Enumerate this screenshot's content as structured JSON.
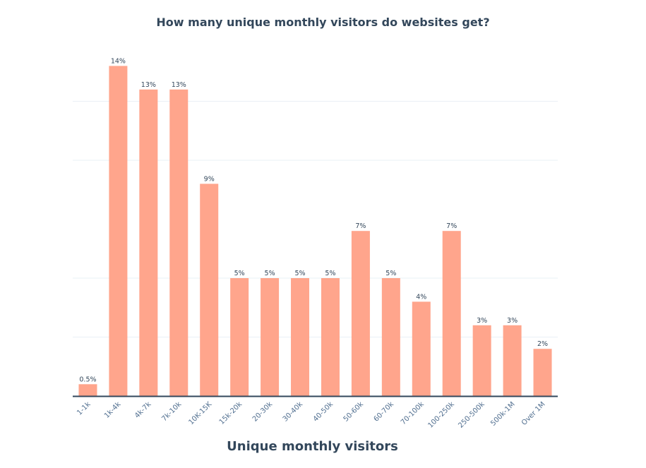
{
  "chart_data": {
    "type": "bar",
    "title": "How many unique monthly visitors do websites get?",
    "xlabel": "Unique monthly visitors",
    "ylabel": "",
    "categories": [
      "1-1k",
      "1k-4k",
      "4k-7k",
      "7k-10k",
      "10K-15K",
      "15k-20k",
      "20-30k",
      "30-40k",
      "40-50k",
      "50-60k",
      "60-70k",
      "70-100k",
      "100-250k",
      "250-500k",
      "500k-1M",
      "Over 1M"
    ],
    "values": [
      0.5,
      14,
      13,
      13,
      9,
      5,
      5,
      5,
      5,
      7,
      5,
      4,
      7,
      3,
      3,
      2
    ],
    "data_labels": [
      "0.5%",
      "14%",
      "13%",
      "13%",
      "9%",
      "5%",
      "5%",
      "5%",
      "5%",
      "7%",
      "5%",
      "4%",
      "7%",
      "3%",
      "3%",
      "2%"
    ],
    "ylim": [
      0,
      15
    ],
    "grid": true,
    "legend": "none",
    "bar_color": "#ffa58c",
    "axis_color": "#33475b",
    "grid_color": "#eaf0f6"
  }
}
